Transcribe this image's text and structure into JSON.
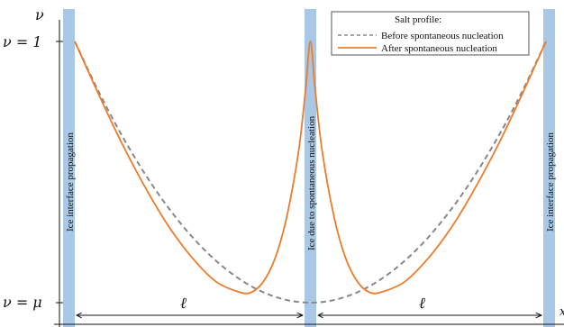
{
  "chart_data": {
    "type": "line",
    "title": "",
    "xlabel": "x",
    "ylabel": "ν",
    "y_ticks": [
      {
        "value": 1,
        "label": "ν = 1"
      },
      {
        "value": 0,
        "label": "ν = μ"
      }
    ],
    "ylim": [
      0,
      1
    ],
    "legend": {
      "title": "Salt profile:",
      "position": "top-right",
      "entries": [
        {
          "label": "Before spontaneous nucleation",
          "style": "dashed",
          "color": "#888888"
        },
        {
          "label": "After spontaneous nucleation",
          "style": "solid",
          "color": "#ee7b2a"
        }
      ]
    },
    "bands": [
      {
        "label": "Ice  interface propagation",
        "color": "#a8c8e6"
      },
      {
        "label": "Ice  due to spontaneous nucleation",
        "color": "#a8c8e6"
      },
      {
        "label": "Ice  interface propagation",
        "color": "#a8c8e6"
      }
    ],
    "length_labels": [
      "ℓ",
      "ℓ"
    ],
    "series": [
      {
        "name": "Before spontaneous nucleation",
        "color": "#888888",
        "style": "dashed",
        "x": [
          0,
          0.1,
          0.2,
          0.3,
          0.4,
          0.5,
          0.6,
          0.7,
          0.8,
          0.9,
          1.0,
          1.1,
          1.2,
          1.3,
          1.4,
          1.5,
          1.6,
          1.7,
          1.8,
          1.9,
          2.0
        ],
        "y": [
          1.0,
          0.81,
          0.64,
          0.49,
          0.36,
          0.25,
          0.16,
          0.09,
          0.04,
          0.01,
          0.0,
          0.01,
          0.04,
          0.09,
          0.16,
          0.25,
          0.36,
          0.49,
          0.64,
          0.81,
          1.0
        ]
      },
      {
        "name": "After spontaneous nucleation",
        "color": "#ee7b2a",
        "style": "solid",
        "x": [
          0,
          0.1,
          0.2,
          0.3,
          0.4,
          0.5,
          0.6,
          0.7,
          0.75,
          0.8,
          0.85,
          0.9,
          0.95,
          0.98,
          1.0,
          1.02,
          1.05,
          1.1,
          1.15,
          1.2,
          1.25,
          1.3,
          1.4,
          1.5,
          1.6,
          1.7,
          1.8,
          1.9,
          2.0
        ],
        "y": [
          1.0,
          0.8,
          0.61,
          0.44,
          0.29,
          0.17,
          0.08,
          0.04,
          0.04,
          0.08,
          0.17,
          0.33,
          0.58,
          0.82,
          1.0,
          0.82,
          0.58,
          0.33,
          0.17,
          0.08,
          0.04,
          0.04,
          0.08,
          0.17,
          0.29,
          0.44,
          0.61,
          0.8,
          1.0
        ]
      }
    ]
  }
}
